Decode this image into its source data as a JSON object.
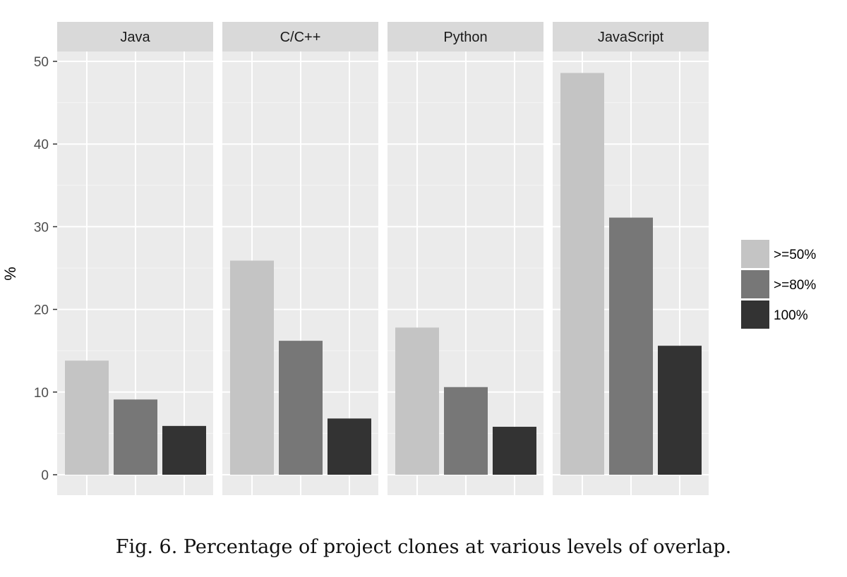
{
  "chart_data": {
    "type": "bar",
    "facets": [
      "Java",
      "C/C++",
      "Python",
      "JavaScript"
    ],
    "series": [
      {
        "name": ">=50%",
        "values": [
          13.8,
          25.9,
          17.8,
          48.6
        ],
        "color": "#c4c4c4"
      },
      {
        "name": ">=80%",
        "values": [
          9.1,
          16.2,
          10.6,
          31.1
        ],
        "color": "#777777"
      },
      {
        "name": "100%",
        "values": [
          5.9,
          6.8,
          5.8,
          15.6
        ],
        "color": "#333333"
      }
    ],
    "ylabel": "%",
    "xlabel": "",
    "ylim": [
      0,
      50
    ],
    "yticks": [
      0,
      10,
      20,
      30,
      40,
      50
    ],
    "grid": true,
    "legend_position": "right",
    "panel_color": "#ebebeb",
    "strip_color": "#d9d9d9"
  },
  "caption": "Fig. 6.  Percentage of project clones at various levels of overlap."
}
